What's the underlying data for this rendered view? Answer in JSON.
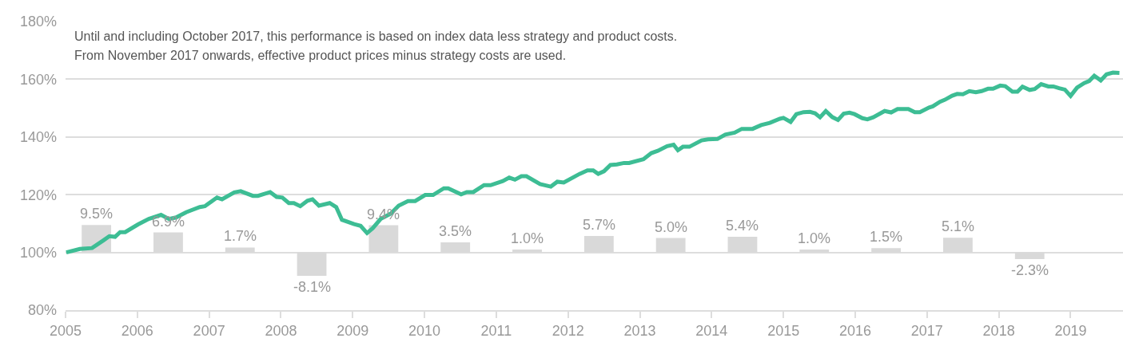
{
  "chart_data": {
    "type": "line",
    "annotations": [
      "Until and including October 2017, this performance is based on index data less strategy and product costs.",
      "From November 2017 onwards, effective product prices minus strategy costs are used."
    ],
    "series": [
      {
        "type": "bar",
        "color": "#d9d9d9",
        "x": [
          2005.43,
          2006.43,
          2007.43,
          2008.43,
          2009.43,
          2010.43,
          2011.43,
          2012.43,
          2013.43,
          2014.43,
          2015.43,
          2016.43,
          2017.43,
          2018.43
        ],
        "base": [
          100,
          100,
          100,
          100,
          100,
          100,
          100,
          100,
          100,
          100,
          100,
          100,
          100,
          100
        ],
        "values": [
          9.5,
          6.9,
          1.7,
          -8.1,
          9.4,
          3.5,
          1.0,
          5.7,
          5.0,
          5.4,
          1.0,
          1.5,
          5.1,
          -2.3
        ],
        "value_labels": [
          "9.5%",
          "6.9%",
          "1.7%",
          "-8.1%",
          "9.4%",
          "3.5%",
          "1.0%",
          "5.7%",
          "5.0%",
          "5.4%",
          "1.0%",
          "1.5%",
          "5.1%",
          "-2.3%"
        ]
      },
      {
        "color": "#3dbd94",
        "x": [
          2005.01,
          2005.2,
          2005.37,
          2005.53,
          2005.61,
          2005.69,
          2005.76,
          2005.83,
          2006.01,
          2006.16,
          2006.33,
          2006.44,
          2006.54,
          2006.68,
          2006.87,
          2006.94,
          2007.11,
          2007.18,
          2007.35,
          2007.44,
          2007.61,
          2007.68,
          2007.85,
          2007.94,
          2008.02,
          2008.11,
          2008.18,
          2008.27,
          2008.37,
          2008.44,
          2008.53,
          2008.68,
          2008.77,
          2008.85,
          2009.02,
          2009.11,
          2009.2,
          2009.28,
          2009.39,
          2009.53,
          2009.64,
          2009.77,
          2009.87,
          2010.01,
          2010.12,
          2010.27,
          2010.33,
          2010.51,
          2010.59,
          2010.68,
          2010.83,
          2010.92,
          2011.09,
          2011.18,
          2011.26,
          2011.35,
          2011.42,
          2011.61,
          2011.76,
          2011.85,
          2011.94,
          2012.16,
          2012.27,
          2012.35,
          2012.42,
          2012.5,
          2012.59,
          2012.68,
          2012.78,
          2012.85,
          2013.05,
          2013.16,
          2013.25,
          2013.38,
          2013.47,
          2013.53,
          2013.6,
          2013.69,
          2013.86,
          2013.95,
          2014.08,
          2014.19,
          2014.32,
          2014.42,
          2014.57,
          2014.69,
          2014.81,
          2014.95,
          2015.0,
          2015.1,
          2015.18,
          2015.28,
          2015.37,
          2015.44,
          2015.51,
          2015.59,
          2015.68,
          2015.76,
          2015.84,
          2015.92,
          2015.99,
          2016.1,
          2016.17,
          2016.25,
          2016.41,
          2016.5,
          2016.59,
          2016.74,
          2016.83,
          2016.9,
          2017.03,
          2017.08,
          2017.18,
          2017.25,
          2017.35,
          2017.42,
          2017.5,
          2017.59,
          2017.68,
          2017.76,
          2017.85,
          2017.92,
          2018.02,
          2018.09,
          2018.19,
          2018.26,
          2018.33,
          2018.43,
          2018.5,
          2018.59,
          2018.69,
          2018.76,
          2018.84,
          2018.92,
          2019.0,
          2019.09,
          2019.19,
          2019.26,
          2019.33,
          2019.42,
          2019.5,
          2019.59,
          2019.68
        ],
        "values": [
          100,
          101.2,
          101.5,
          104.2,
          105.6,
          105.4,
          107.0,
          107.0,
          109.7,
          111.6,
          113.0,
          111.6,
          112.1,
          113.9,
          115.7,
          116.0,
          119.0,
          118.4,
          120.8,
          121.2,
          119.6,
          119.6,
          120.9,
          119.2,
          119.0,
          117.1,
          117.1,
          116.0,
          117.9,
          118.4,
          116.2,
          117.1,
          115.7,
          111.3,
          109.8,
          109.2,
          106.7,
          108.4,
          111.6,
          113.4,
          116.2,
          117.8,
          117.8,
          119.9,
          119.9,
          122.2,
          122.2,
          120.1,
          120.9,
          120.9,
          123.3,
          123.3,
          124.7,
          125.9,
          125.2,
          126.4,
          126.4,
          123.7,
          122.8,
          124.5,
          124.2,
          127.2,
          128.4,
          128.4,
          127.2,
          128.1,
          130.3,
          130.5,
          131.0,
          131.0,
          132.3,
          134.4,
          135.2,
          136.8,
          137.3,
          135.4,
          136.6,
          136.6,
          138.8,
          139.2,
          139.3,
          140.8,
          141.5,
          142.8,
          142.8,
          144.1,
          144.9,
          146.3,
          146.6,
          145.2,
          147.9,
          148.6,
          148.7,
          148.2,
          146.8,
          149.0,
          146.9,
          145.9,
          148.1,
          148.4,
          147.9,
          146.5,
          146.1,
          146.8,
          149.0,
          148.5,
          149.7,
          149.7,
          148.6,
          148.6,
          150.2,
          150.6,
          152.2,
          152.9,
          154.3,
          154.9,
          154.8,
          155.9,
          155.5,
          155.9,
          156.7,
          156.7,
          157.8,
          157.6,
          155.7,
          155.7,
          157.4,
          156.3,
          156.6,
          158.3,
          157.5,
          157.5,
          156.9,
          156.4,
          154.2,
          157.1,
          158.7,
          159.4,
          161.2,
          159.6,
          161.7,
          162.3,
          162.2
        ]
      }
    ],
    "xlim": [
      2005,
      2019.73
    ],
    "xticks": [
      2005,
      2006,
      2007,
      2008,
      2009,
      2010,
      2011,
      2012,
      2013,
      2014,
      2015,
      2016,
      2017,
      2018,
      2019
    ],
    "ylim": [
      80,
      180
    ],
    "yticks": [
      {
        "value": 80,
        "label": "80%"
      },
      {
        "value": 100,
        "label": "100%"
      },
      {
        "value": 120,
        "label": "120%"
      },
      {
        "value": 140,
        "label": "140%"
      },
      {
        "value": 160,
        "label": "160%"
      },
      {
        "value": 180,
        "label": "180%"
      }
    ],
    "grid": "y"
  }
}
